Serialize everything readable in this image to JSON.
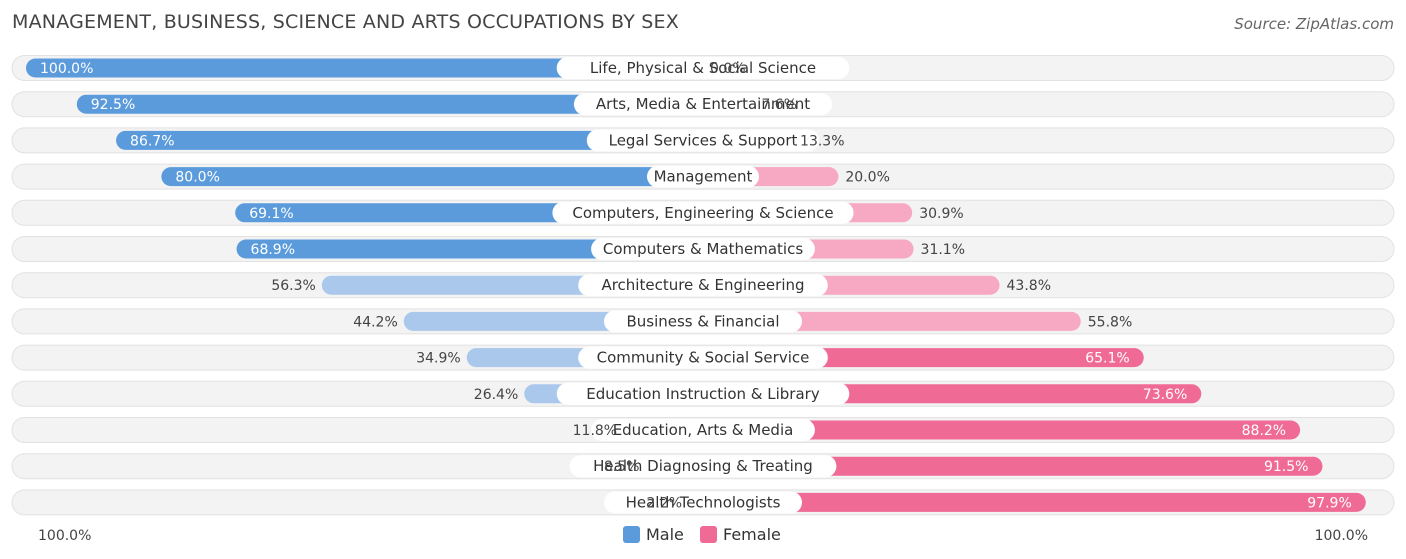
{
  "chart_data": {
    "type": "bar",
    "orientation": "horizontal-diverging",
    "title": "MANAGEMENT, BUSINESS, SCIENCE AND ARTS OCCUPATIONS BY SEX",
    "source": "Source: ZipAtlas.com",
    "categories": [
      "Life, Physical & Social Science",
      "Arts, Media & Entertainment",
      "Legal Services & Support",
      "Management",
      "Computers, Engineering & Science",
      "Computers & Mathematics",
      "Architecture & Engineering",
      "Business & Financial",
      "Community & Social Service",
      "Education Instruction & Library",
      "Education, Arts & Media",
      "Health Diagnosing & Treating",
      "Health Technologists"
    ],
    "series": [
      {
        "name": "Male",
        "color": "#5b9bdc",
        "values": [
          100.0,
          92.5,
          86.7,
          80.0,
          69.1,
          68.9,
          56.3,
          44.2,
          34.9,
          26.4,
          11.8,
          8.5,
          2.2
        ],
        "labels": [
          "100.0%",
          "92.5%",
          "86.7%",
          "80.0%",
          "69.1%",
          "68.9%",
          "56.3%",
          "44.2%",
          "34.9%",
          "26.4%",
          "11.8%",
          "8.5%",
          "2.2%"
        ]
      },
      {
        "name": "Female",
        "color": "#f06a96",
        "values": [
          0.0,
          7.6,
          13.3,
          20.0,
          30.9,
          31.1,
          43.8,
          55.8,
          65.1,
          73.6,
          88.2,
          91.5,
          97.9
        ],
        "labels": [
          "0.0%",
          "7.6%",
          "13.3%",
          "20.0%",
          "30.9%",
          "31.1%",
          "43.8%",
          "55.8%",
          "65.1%",
          "73.6%",
          "88.2%",
          "91.5%",
          "97.9%"
        ]
      }
    ],
    "axis": {
      "left_label": "100.0%",
      "right_label": "100.0%",
      "range": [
        0,
        100
      ]
    },
    "legend": {
      "position": "bottom-center",
      "items": [
        "Male",
        "Female"
      ]
    },
    "colors": {
      "male": "#5b9bdc",
      "male_light": "#a9c8ec",
      "female": "#f06a96",
      "female_light": "#f7a8c3",
      "track": "#efefef"
    }
  }
}
